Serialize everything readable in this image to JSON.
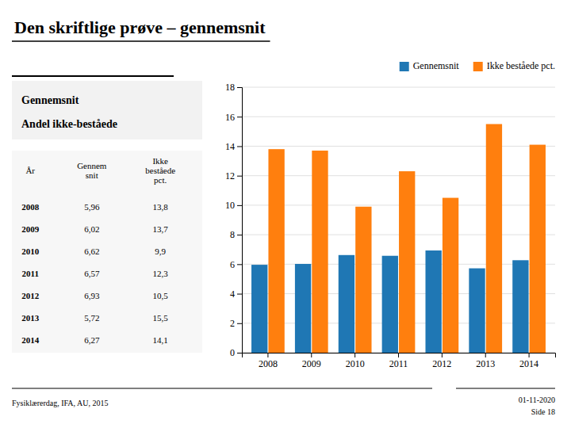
{
  "chart_data": {
    "type": "bar",
    "title": "Den skriftlige prøve – gennemsnit",
    "categories": [
      "2008",
      "2009",
      "2010",
      "2011",
      "2012",
      "2013",
      "2014"
    ],
    "series": [
      {
        "name": "Gennemsnit",
        "values": [
          5.96,
          6.02,
          6.62,
          6.57,
          6.93,
          5.72,
          6.27
        ],
        "value_labels": [
          "5,96",
          "6,02",
          "6,62",
          "6,57",
          "6,93",
          "5,72",
          "6,27"
        ]
      },
      {
        "name": "Ikke beståede pct.",
        "values": [
          13.8,
          13.7,
          9.9,
          12.3,
          10.5,
          15.5,
          14.1
        ],
        "value_labels": [
          "13,8",
          "13,7",
          "9,9",
          "12,3",
          "10,5",
          "15,5",
          "14,1"
        ]
      }
    ],
    "table_headers": [
      [
        "År"
      ],
      [
        "Gennem",
        "snit"
      ],
      [
        "Ikke",
        "beståede",
        "pct."
      ]
    ],
    "annotations": [
      "Gennemsnit",
      "Andel ikke-beståede",
      "Fysiklærerdag, IFA, AU, 2015",
      "01-11-2020",
      "Side 18"
    ],
    "ylim": [
      0,
      18
    ],
    "yticks": [
      0,
      2,
      4,
      6,
      8,
      10,
      12,
      14,
      16,
      18
    ],
    "grid": true,
    "legend": "upper right"
  }
}
